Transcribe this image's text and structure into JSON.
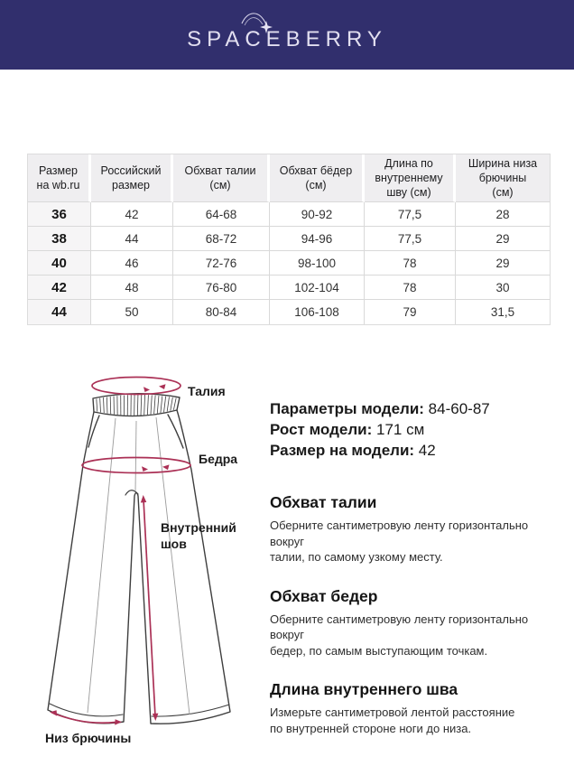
{
  "header": {
    "brand": "SPACEBERRY"
  },
  "colors": {
    "brand_navy": "#312f6d",
    "accent_pink": "#ab3156"
  },
  "size_table": {
    "columns": [
      "Размер\nна wb.ru",
      "Российский\nразмер",
      "Обхват талии\n(см)",
      "Обхват бёдер\n(см)",
      "Длина по\nвнутреннему\nшву (см)",
      "Ширина низа\nбрючины\n(см)"
    ],
    "rows": [
      [
        "36",
        "42",
        "64-68",
        "90-92",
        "77,5",
        "28"
      ],
      [
        "38",
        "44",
        "68-72",
        "94-96",
        "77,5",
        "29"
      ],
      [
        "40",
        "46",
        "72-76",
        "98-100",
        "78",
        "29"
      ],
      [
        "42",
        "48",
        "76-80",
        "102-104",
        "78",
        "30"
      ],
      [
        "44",
        "50",
        "80-84",
        "106-108",
        "79",
        "31,5"
      ]
    ]
  },
  "diagram": {
    "labels": {
      "waist": "Талия",
      "hips": "Бедра",
      "inseam_lines": [
        "Внутренний",
        "шов"
      ],
      "hem": "Низ брючины"
    }
  },
  "model_info": {
    "params": [
      {
        "label": "Параметры модели:",
        "value": "84-60-87"
      },
      {
        "label": "Рост модели:",
        "value": "171 см"
      },
      {
        "label": "Размер на модели:",
        "value": "42"
      }
    ],
    "sections": [
      {
        "title": "Обхват талии",
        "text": "Оберните сантиметровую ленту горизонтально вокруг\nталии, по самому узкому месту."
      },
      {
        "title": "Обхват бедер",
        "text": "Оберните сантиметровую ленту горизонтально вокруг\nбедер, по самым выступающим точкам."
      },
      {
        "title": "Длина внутреннего шва",
        "text": "Измерьте сантиметровой лентой расстояние\nпо внутренней стороне ноги до низа."
      }
    ]
  }
}
